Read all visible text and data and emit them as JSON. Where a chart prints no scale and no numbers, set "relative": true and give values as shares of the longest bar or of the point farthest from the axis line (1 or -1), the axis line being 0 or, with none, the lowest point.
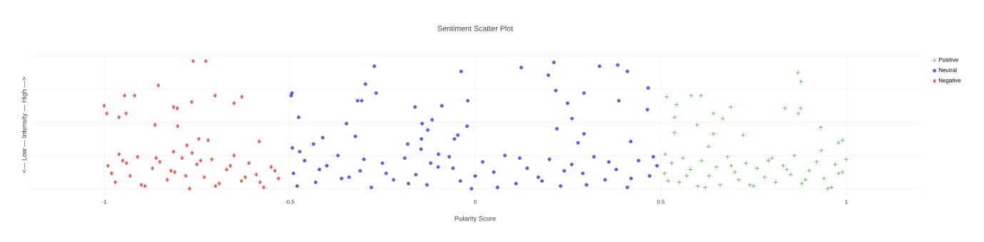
{
  "chart_data": {
    "type": "scatter",
    "title": "Sentiment Scatter Plot",
    "xlabel": "Polarity Score",
    "ylabel": "<--- Low --- Intensity --- High --->",
    "relative": true,
    "xlim": [
      -1.2,
      1.2
    ],
    "xticks": [
      -1,
      -0.5,
      0,
      0.5,
      1
    ],
    "grid": true,
    "legend": "top right",
    "series": [
      {
        "name": "Positive",
        "color": "#3c9a3c",
        "marker": "cross",
        "x": [
          0.87,
          0.878,
          0.877,
          0.871,
          0.835,
          0.516,
          0.582,
          0.608,
          0.543,
          0.537,
          0.537,
          0.598,
          0.642,
          0.667,
          0.689,
          0.642,
          0.722,
          0.629,
          0.931,
          0.933,
          0.979,
          0.99,
          0.512,
          0.51,
          0.53,
          0.55,
          0.56,
          0.58,
          0.6,
          0.61,
          0.63,
          0.65,
          0.66,
          0.68,
          0.7,
          0.71,
          0.73,
          0.75,
          0.76,
          0.78,
          0.8,
          0.81,
          0.83,
          0.85,
          0.86,
          0.88,
          0.9,
          0.92,
          0.94,
          0.95,
          0.97,
          0.98,
          1.0,
          0.52,
          0.57,
          0.62,
          0.69,
          0.74,
          0.79,
          0.84,
          0.89,
          0.96,
          0.99
        ],
        "values": [
          0.91,
          0.84,
          0.63,
          0.59,
          0.63,
          0.72,
          0.73,
          0.73,
          0.66,
          0.56,
          0.44,
          0.5,
          0.59,
          0.55,
          0.64,
          0.43,
          0.42,
          0.33,
          0.48,
          0.3,
          0.36,
          0.38,
          0.27,
          0.12,
          0.2,
          0.05,
          0.24,
          0.15,
          0.02,
          0.22,
          0.1,
          0.17,
          0.03,
          0.25,
          0.13,
          0.07,
          0.2,
          0.02,
          0.16,
          0.09,
          0.24,
          0.05,
          0.18,
          0.11,
          0.26,
          0.04,
          0.14,
          0.21,
          0.08,
          0.0,
          0.19,
          0.12,
          0.23,
          0.06,
          0.1,
          0.01,
          0.18,
          0.03,
          0.22,
          0.15,
          0.07,
          0.01,
          0.13
        ]
      },
      {
        "name": "Neutral",
        "color": "#4444e0",
        "marker": "circle",
        "x": [
          -0.272,
          -0.296,
          -0.267,
          -0.317,
          -0.306,
          -0.494,
          -0.496,
          -0.476,
          -0.347,
          -0.411,
          -0.323,
          -0.436,
          -0.493,
          -0.473,
          -0.038,
          -0.02,
          -0.022,
          -0.047,
          -0.056,
          -0.09,
          -0.162,
          -0.116,
          -0.143,
          -0.128,
          -0.145,
          -0.182,
          -0.146,
          -0.099,
          0.124,
          0.212,
          0.197,
          0.335,
          0.384,
          0.41,
          0.466,
          0.464,
          0.217,
          0.293,
          0.249,
          0.387,
          0.261,
          0.22,
          0.293,
          0.277,
          0.419,
          -0.49,
          -0.46,
          -0.43,
          -0.4,
          -0.37,
          -0.34,
          -0.31,
          -0.28,
          -0.25,
          -0.22,
          -0.19,
          -0.16,
          -0.13,
          -0.1,
          -0.07,
          -0.04,
          -0.01,
          0.02,
          0.05,
          0.08,
          0.11,
          0.14,
          0.17,
          0.2,
          0.23,
          0.26,
          0.29,
          0.32,
          0.35,
          0.38,
          0.41,
          0.44,
          0.47,
          0.49,
          -0.48,
          -0.42,
          -0.36,
          -0.3,
          -0.24,
          -0.18,
          -0.12,
          -0.06,
          0.0,
          0.06,
          0.12,
          0.18,
          0.24,
          0.3,
          0.36,
          0.42,
          0.48
        ],
        "values": [
          0.96,
          0.82,
          0.75,
          0.69,
          0.69,
          0.75,
          0.73,
          0.56,
          0.51,
          0.4,
          0.41,
          0.35,
          0.32,
          0.29,
          0.92,
          0.69,
          0.49,
          0.42,
          0.39,
          0.65,
          0.64,
          0.54,
          0.51,
          0.46,
          0.39,
          0.35,
          0.31,
          0.27,
          0.95,
          0.99,
          0.89,
          0.96,
          0.97,
          0.92,
          0.79,
          0.62,
          0.77,
          0.75,
          0.67,
          0.69,
          0.55,
          0.47,
          0.43,
          0.36,
          0.37,
          0.12,
          0.22,
          0.05,
          0.18,
          0.26,
          0.09,
          0.14,
          0.01,
          0.2,
          0.07,
          0.24,
          0.11,
          0.03,
          0.17,
          0.25,
          0.06,
          0.0,
          0.21,
          0.13,
          0.26,
          0.04,
          0.16,
          0.09,
          0.23,
          0.02,
          0.19,
          0.12,
          0.25,
          0.07,
          0.15,
          0.01,
          0.22,
          0.1,
          0.18,
          0.02,
          0.15,
          0.08,
          0.23,
          0.12,
          0.04,
          0.2,
          0.16,
          0.1,
          0.01,
          0.24,
          0.06,
          0.14,
          0.03,
          0.21,
          0.08,
          0.25
        ]
      },
      {
        "name": "Negative",
        "color": "#e84444",
        "marker": "diamond",
        "x": [
          -0.76,
          -0.726,
          -0.854,
          -0.945,
          -0.918,
          -1.0,
          -0.993,
          -0.96,
          -0.941,
          -0.863,
          -0.813,
          -0.803,
          -0.802,
          -0.764,
          -0.701,
          -0.65,
          -0.629,
          -0.777,
          -0.745,
          -0.72,
          -0.582,
          -0.96,
          -0.813,
          -0.763,
          -0.99,
          -0.97,
          -0.95,
          -0.93,
          -0.91,
          -0.89,
          -0.87,
          -0.85,
          -0.83,
          -0.81,
          -0.79,
          -0.77,
          -0.75,
          -0.73,
          -0.71,
          -0.69,
          -0.67,
          -0.65,
          -0.63,
          -0.61,
          -0.59,
          -0.57,
          -0.55,
          -0.53,
          -0.98,
          -0.94,
          -0.9,
          -0.86,
          -0.82,
          -0.78,
          -0.74,
          -0.7,
          -0.66,
          -0.62,
          -0.58,
          -0.54
        ],
        "values": [
          1.0,
          1.0,
          0.81,
          0.73,
          0.73,
          0.65,
          0.59,
          0.56,
          0.59,
          0.5,
          0.64,
          0.63,
          0.49,
          0.68,
          0.73,
          0.67,
          0.72,
          0.34,
          0.39,
          0.38,
          0.37,
          0.27,
          0.29,
          0.28,
          0.18,
          0.05,
          0.22,
          0.1,
          0.25,
          0.02,
          0.16,
          0.21,
          0.07,
          0.13,
          0.24,
          0.0,
          0.19,
          0.09,
          0.23,
          0.04,
          0.15,
          0.26,
          0.06,
          0.2,
          0.11,
          0.01,
          0.17,
          0.08,
          0.12,
          0.2,
          0.03,
          0.24,
          0.14,
          0.1,
          0.22,
          0.02,
          0.18,
          0.09,
          0.05,
          0.14
        ]
      }
    ]
  }
}
